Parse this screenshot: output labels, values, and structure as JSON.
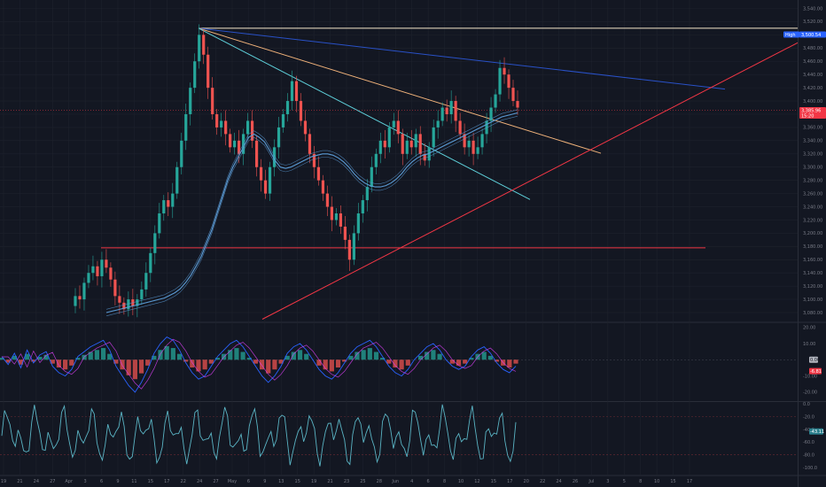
{
  "chart_data": [
    {
      "type": "line",
      "title": "",
      "price_axis": [
        3540,
        3520,
        3500,
        3480,
        3460,
        3440,
        3420,
        3400,
        3380,
        3360,
        3340,
        3320,
        3300,
        3280,
        3260,
        3240,
        3220,
        3200,
        3180,
        3160,
        3140,
        3120,
        3100,
        3080
      ],
      "price_axis_labels": [
        "3,540.00",
        "3,520.00",
        "3,500.00",
        "3,480.00",
        "3,460.00",
        "3,440.00",
        "3,420.00",
        "3,400.00",
        "3,380.00",
        "3,360.00",
        "3,340.00",
        "3,320.00",
        "3,300.00",
        "3,280.00",
        "3,260.00",
        "3,240.00",
        "3,220.00",
        "3,200.00",
        "3,180.00",
        "3,160.00",
        "3,140.00",
        "3,120.00",
        "3,100.00",
        "3,080.00"
      ],
      "ylim": [
        3068,
        3542
      ],
      "date_axis_labels": [
        "19",
        "21",
        "24",
        "27",
        "Apr",
        "3",
        "6",
        "9",
        "11",
        "15",
        "17",
        "22",
        "24",
        "27",
        "May",
        "6",
        "9",
        "13",
        "15",
        "19",
        "21",
        "23",
        "25",
        "28",
        "Jun",
        "4",
        "6",
        "8",
        "10",
        "12",
        "15",
        "17",
        "20",
        "22",
        "24",
        "26",
        "Jul",
        "3",
        "5",
        "8",
        "10",
        "15",
        "17"
      ],
      "price_series": [
        3090,
        3105,
        3100,
        3125,
        3140,
        3150,
        3135,
        3160,
        3148,
        3130,
        3105,
        3095,
        3085,
        3100,
        3090,
        3100,
        3115,
        3140,
        3170,
        3200,
        3230,
        3250,
        3240,
        3260,
        3300,
        3340,
        3380,
        3420,
        3460,
        3500,
        3470,
        3420,
        3380,
        3360,
        3370,
        3350,
        3330,
        3340,
        3320,
        3350,
        3370,
        3340,
        3300,
        3280,
        3260,
        3300,
        3330,
        3360,
        3380,
        3400,
        3430,
        3400,
        3370,
        3350,
        3320,
        3300,
        3280,
        3260,
        3240,
        3220,
        3230,
        3210,
        3190,
        3160,
        3200,
        3230,
        3250,
        3270,
        3300,
        3320,
        3340,
        3330,
        3360,
        3370,
        3350,
        3320,
        3340,
        3330,
        3350,
        3320,
        3310,
        3330,
        3360,
        3370,
        3390,
        3380,
        3400,
        3370,
        3350,
        3330,
        3340,
        3320,
        3330,
        3350,
        3370,
        3390,
        3410,
        3450,
        3440,
        3420,
        3400,
        3390
      ],
      "ma_series": [
        3080,
        3082,
        3084,
        3086,
        3088,
        3090,
        3092,
        3094,
        3096,
        3098,
        3100,
        3102,
        3106,
        3110,
        3116,
        3125,
        3136,
        3150,
        3165,
        3185,
        3205,
        3230,
        3255,
        3280,
        3300,
        3315,
        3330,
        3345,
        3350,
        3345,
        3338,
        3325,
        3310,
        3300,
        3298,
        3300,
        3304,
        3308,
        3312,
        3316,
        3318,
        3320,
        3320,
        3318,
        3314,
        3308,
        3300,
        3290,
        3282,
        3276,
        3272,
        3270,
        3270,
        3272,
        3276,
        3282,
        3290,
        3300,
        3308,
        3314,
        3318,
        3320,
        3324,
        3328,
        3332,
        3336,
        3340,
        3344,
        3348,
        3352,
        3356,
        3360,
        3364,
        3368,
        3372,
        3376,
        3378,
        3380,
        3382
      ],
      "price_tags": [
        {
          "label": "High",
          "value": "3,500.54",
          "color": "#2962ff"
        },
        {
          "label": "",
          "value": "3,385.96",
          "color": "#f23645"
        },
        {
          "label": "",
          "value": "15:20",
          "color": "#f23645"
        }
      ]
    },
    {
      "type": "area",
      "name": "oscillator",
      "y_axis_labels": [
        "20.00",
        "10.00",
        "-10.00",
        "-20.00"
      ],
      "ylim": [
        -25,
        22
      ],
      "histogram": [
        2,
        -3,
        4,
        -5,
        6,
        -2,
        3,
        5,
        -4,
        -8,
        -10,
        -6,
        2,
        5,
        8,
        10,
        12,
        6,
        -4,
        -10,
        -16,
        -20,
        -14,
        -6,
        4,
        10,
        14,
        12,
        6,
        -2,
        -8,
        -12,
        -10,
        -4,
        2,
        6,
        10,
        12,
        8,
        2,
        -4,
        -10,
        -14,
        -10,
        -4,
        4,
        8,
        10,
        6,
        0,
        -6,
        -10,
        -12,
        -8,
        -2,
        4,
        8,
        10,
        12,
        8,
        2,
        -4,
        -8,
        -10,
        -6,
        0,
        4,
        8,
        10,
        6,
        0,
        -4,
        -6,
        -4,
        2,
        6,
        8,
        4,
        -2,
        -6,
        -8,
        -4
      ],
      "tag_values": [
        "0.00",
        "-6.81"
      ]
    },
    {
      "type": "line",
      "name": "cci",
      "y_axis_labels": [
        "0.0",
        "-20.0",
        "-40.0",
        "-60.0",
        "-80.0",
        "-100.0"
      ],
      "ylim": [
        -100,
        2
      ],
      "tag_value": "-43.11"
    }
  ],
  "colors": {
    "background": "#131722",
    "grid": "#1e222d",
    "up": "#26a69a",
    "down": "#ef5350",
    "ma": "#5b9bd5",
    "blue_line": "#2951c7",
    "orange_line": "#f0b27a",
    "cyan_line": "#5ecfd9",
    "red_line": "#f23645",
    "white_line": "#f5e6c8",
    "cci": "#5ab4c4"
  }
}
